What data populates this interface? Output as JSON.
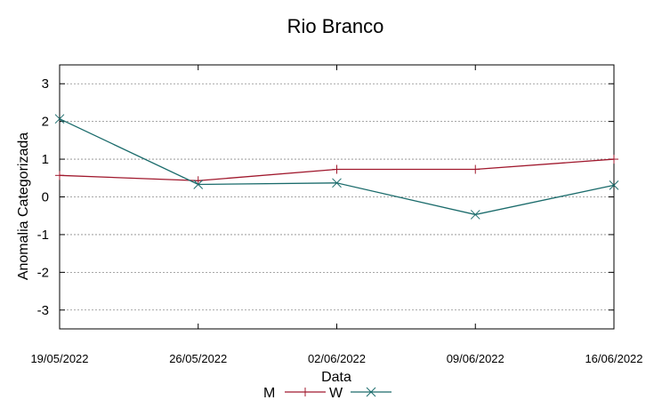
{
  "chart_data": {
    "type": "line",
    "title": "Rio Branco",
    "xlabel": "Data",
    "ylabel": "Anomalia Categorizada",
    "categories": [
      "19/05/2022",
      "26/05/2022",
      "02/06/2022",
      "09/06/2022",
      "16/06/2022"
    ],
    "ylim": [
      -3.5,
      3.5
    ],
    "yticks": [
      "3",
      "2",
      "1",
      "0",
      "-1",
      "-2",
      "-3"
    ],
    "ytick_values": [
      3,
      2,
      1,
      0,
      -1,
      -2,
      -3
    ],
    "grid": "horizontal dotted",
    "legend_position": "bottom",
    "series": [
      {
        "name": "M",
        "values": [
          0.57,
          0.43,
          0.73,
          0.73,
          1.0
        ],
        "color": "#a0182d",
        "marker": "plus"
      },
      {
        "name": "W",
        "values": [
          2.07,
          0.33,
          0.37,
          -0.47,
          0.31
        ],
        "color": "#1a6b6b",
        "marker": "cross"
      }
    ]
  }
}
